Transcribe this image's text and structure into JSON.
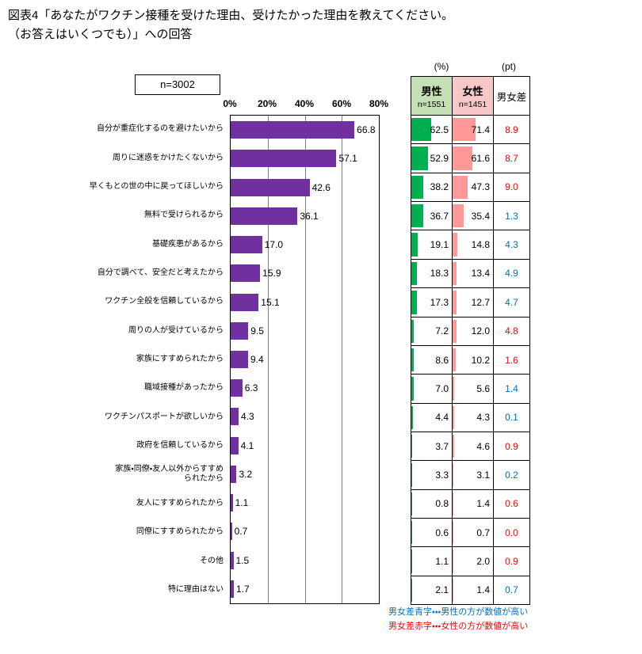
{
  "title": {
    "line1": "図表4「あなたがワクチン接種を受けた理由、受けたかった理由を教えてください。",
    "line2": "（お答えはいくつでも）」への回答"
  },
  "sample_label": "n=3002",
  "chart_data": {
    "type": "bar",
    "orientation": "horizontal",
    "title": "図表4「あなたがワクチン接種を受けた理由、受けたかった理由を教えてください。（お答えはいくつでも）」への回答",
    "xlabel": "",
    "ylabel": "",
    "xlim": [
      0,
      80
    ],
    "x_ticks": [
      "0%",
      "20%",
      "40%",
      "60%",
      "80%"
    ],
    "grid": true,
    "legend_position": "none",
    "categories": [
      "自分が重症化するのを避けたいから",
      "周りに迷惑をかけたくないから",
      "早くもとの世の中に戻ってほしいから",
      "無料で受けられるから",
      "基礎疾患があるから",
      "自分で調べて、安全だと考えたから",
      "ワクチン全般を信頼しているから",
      "周りの人が受けているから",
      "家族にすすめられたから",
      "職域接種があったから",
      "ワクチンパスポートが欲しいから",
      "政府を信頼しているから",
      "家族・同僚・友人以外からすすめ\nられたから",
      "友人にすすめられたから",
      "同僚にすすめられたから",
      "その他",
      "特に理由はない"
    ],
    "values": [
      66.8,
      57.1,
      42.6,
      36.1,
      17.0,
      15.9,
      15.1,
      9.5,
      9.4,
      6.3,
      4.3,
      4.1,
      3.2,
      1.1,
      0.7,
      1.5,
      1.7
    ],
    "series": [
      {
        "name": "男性",
        "n_label": "n=1551",
        "color": "#00B050",
        "header_bg": "#C5E0B4",
        "values": [
          62.5,
          52.9,
          38.2,
          36.7,
          19.1,
          18.3,
          17.3,
          7.2,
          8.6,
          7.0,
          4.4,
          3.7,
          3.3,
          0.8,
          0.6,
          1.1,
          2.1
        ]
      },
      {
        "name": "女性",
        "n_label": "n=1451",
        "color": "#FF9999",
        "header_bg": "#F8C8C8",
        "values": [
          71.4,
          61.6,
          47.3,
          35.4,
          14.8,
          13.4,
          12.7,
          12.0,
          10.2,
          5.6,
          4.3,
          4.6,
          3.1,
          1.4,
          0.7,
          2.0,
          1.4
        ]
      }
    ],
    "diff_pt": [
      8.9,
      8.7,
      9.0,
      1.3,
      4.3,
      4.9,
      4.7,
      4.8,
      1.6,
      1.4,
      0.1,
      0.9,
      0.2,
      0.6,
      0.0,
      0.9,
      0.7
    ],
    "diff_higher_color": [
      "red",
      "red",
      "red",
      "blue",
      "blue",
      "blue",
      "blue",
      "red",
      "red",
      "blue",
      "blue",
      "red",
      "blue",
      "red",
      "red",
      "red",
      "blue"
    ]
  },
  "table": {
    "pct_unit": "(%)",
    "pt_unit": "(pt)",
    "diff_header": "男女差"
  },
  "notes": {
    "blue": "男女差青字・・・男性の方が数値が高い",
    "red": "男女差赤字・・・女性の方が数値が高い"
  },
  "colors": {
    "bar_purple": "#7030A0",
    "male_green": "#00B050",
    "female_pink": "#FF9999",
    "male_header_bg": "#C5E0B4",
    "female_header_bg": "#F8C8C8",
    "diff_blue": "#0070C0",
    "diff_red": "#FF0000",
    "gridline": "#808080"
  }
}
